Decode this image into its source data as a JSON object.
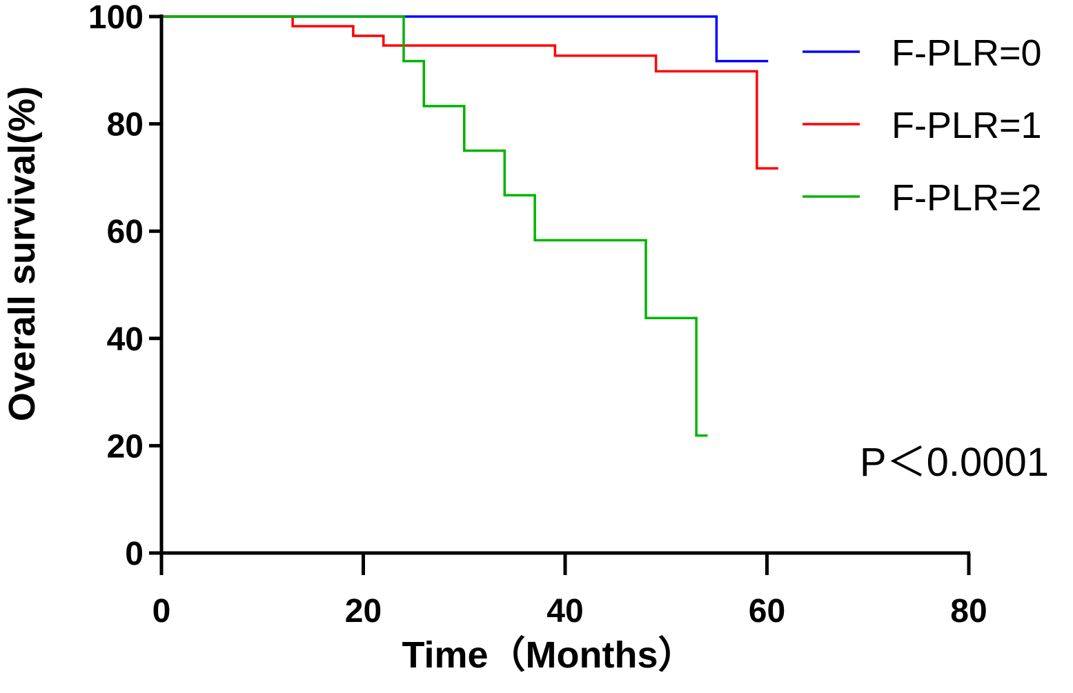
{
  "chart_data": {
    "type": "line",
    "step": "post",
    "xlabel": "Time（Months）",
    "ylabel": "Overall survival(%)",
    "annotation": "P＜0.0001",
    "xlim": [
      0,
      80
    ],
    "xticks": [
      0,
      20,
      40,
      60,
      80
    ],
    "ylim": [
      0,
      100
    ],
    "yticks": [
      0,
      20,
      40,
      60,
      80,
      100
    ],
    "legend": "upper right",
    "series": [
      {
        "name": "F-PLR=0",
        "color": "#0000ff",
        "x": [
          0,
          55,
          60
        ],
        "values": [
          100,
          91.7,
          91.7
        ]
      },
      {
        "name": "F-PLR=1",
        "color": "#ff0000",
        "x": [
          0,
          13,
          19,
          22,
          39,
          49,
          59,
          61
        ],
        "values": [
          100,
          98.2,
          96.4,
          94.6,
          92.7,
          89.8,
          71.7,
          71.7
        ]
      },
      {
        "name": "F-PLR=2",
        "color": "#00b400",
        "x": [
          0,
          24,
          26,
          30,
          34,
          37,
          48,
          53,
          54
        ],
        "values": [
          100,
          91.7,
          83.3,
          75,
          66.7,
          58.3,
          43.8,
          21.9,
          21.9
        ]
      }
    ]
  }
}
